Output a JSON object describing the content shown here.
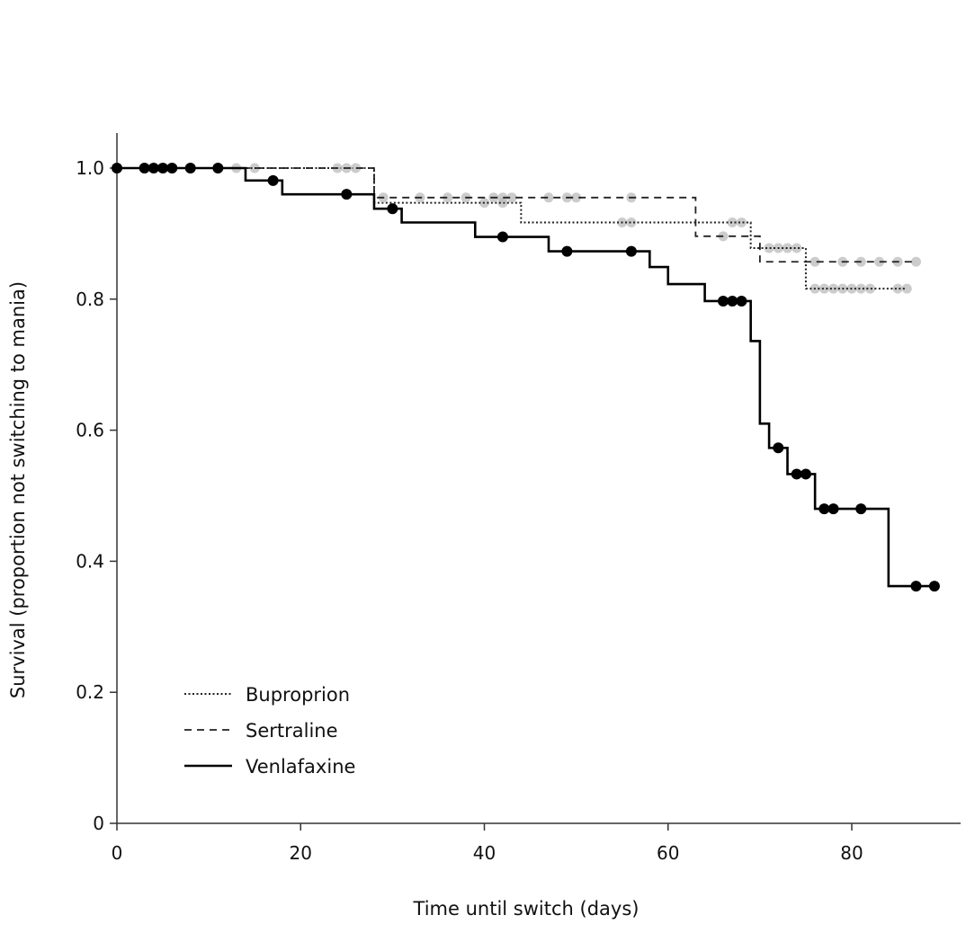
{
  "chart_data": {
    "type": "line",
    "subtype": "kaplan-meier step",
    "title": "",
    "xlabel": "Time until switch (days)",
    "ylabel": "Survival (proportion not switching to mania)",
    "xlim": [
      0,
      92
    ],
    "ylim": [
      0,
      1.05
    ],
    "xticks": [
      0,
      20,
      40,
      60,
      80
    ],
    "xtick_labels": [
      "0",
      "20",
      "40",
      "60",
      "80"
    ],
    "yticks": [
      0,
      0.2,
      0.4,
      0.6,
      0.8,
      1.0
    ],
    "ytick_labels": [
      "0",
      "0.2",
      "0.4",
      "0.6",
      "0.8",
      "1.0"
    ],
    "grid": false,
    "legend_position": "bottom-left",
    "series": [
      {
        "name": "Buproprion",
        "style": "dotted",
        "color": "#222222",
        "censor_color": "#bbbbbb",
        "steps": [
          [
            0,
            1.0
          ],
          [
            28,
            0.947
          ],
          [
            44,
            0.917
          ],
          [
            69,
            0.878
          ],
          [
            75,
            0.816
          ]
        ],
        "end": 86,
        "censored": [
          [
            13,
            1.0
          ],
          [
            15,
            1.0
          ],
          [
            40,
            0.947
          ],
          [
            42,
            0.947
          ],
          [
            55,
            0.917
          ],
          [
            56,
            0.917
          ],
          [
            67,
            0.917
          ],
          [
            68,
            0.917
          ],
          [
            71,
            0.878
          ],
          [
            72,
            0.878
          ],
          [
            73,
            0.878
          ],
          [
            74,
            0.878
          ],
          [
            76,
            0.816
          ],
          [
            77,
            0.816
          ],
          [
            78,
            0.816
          ],
          [
            79,
            0.816
          ],
          [
            80,
            0.816
          ],
          [
            81,
            0.816
          ],
          [
            82,
            0.816
          ],
          [
            85,
            0.816
          ],
          [
            86,
            0.816
          ]
        ]
      },
      {
        "name": "Sertraline",
        "style": "dashed",
        "color": "#222222",
        "censor_color": "#bbbbbb",
        "steps": [
          [
            0,
            1.0
          ],
          [
            28,
            0.955
          ],
          [
            63,
            0.896
          ],
          [
            70,
            0.857
          ]
        ],
        "end": 87,
        "censored": [
          [
            24,
            1.0
          ],
          [
            25,
            1.0
          ],
          [
            26,
            1.0
          ],
          [
            29,
            0.955
          ],
          [
            33,
            0.955
          ],
          [
            36,
            0.955
          ],
          [
            38,
            0.955
          ],
          [
            41,
            0.955
          ],
          [
            42,
            0.955
          ],
          [
            43,
            0.955
          ],
          [
            47,
            0.955
          ],
          [
            49,
            0.955
          ],
          [
            50,
            0.955
          ],
          [
            56,
            0.955
          ],
          [
            66,
            0.896
          ],
          [
            76,
            0.857
          ],
          [
            79,
            0.857
          ],
          [
            81,
            0.857
          ],
          [
            83,
            0.857
          ],
          [
            85,
            0.857
          ],
          [
            87,
            0.857
          ]
        ]
      },
      {
        "name": "Venlafaxine",
        "style": "solid",
        "color": "#000000",
        "censor_color": "#000000",
        "steps": [
          [
            0,
            1.0
          ],
          [
            14,
            0.981
          ],
          [
            18,
            0.96
          ],
          [
            28,
            0.938
          ],
          [
            31,
            0.917
          ],
          [
            39,
            0.895
          ],
          [
            47,
            0.873
          ],
          [
            58,
            0.849
          ],
          [
            60,
            0.823
          ],
          [
            64,
            0.797
          ],
          [
            69,
            0.736
          ],
          [
            70,
            0.61
          ],
          [
            71,
            0.573
          ],
          [
            73,
            0.533
          ],
          [
            76,
            0.48
          ],
          [
            84,
            0.362
          ]
        ],
        "end": 89,
        "censored": [
          [
            0,
            1.0
          ],
          [
            3,
            1.0
          ],
          [
            4,
            1.0
          ],
          [
            5,
            1.0
          ],
          [
            6,
            1.0
          ],
          [
            8,
            1.0
          ],
          [
            11,
            1.0
          ],
          [
            17,
            0.981
          ],
          [
            25,
            0.96
          ],
          [
            30,
            0.938
          ],
          [
            42,
            0.895
          ],
          [
            49,
            0.873
          ],
          [
            56,
            0.873
          ],
          [
            66,
            0.797
          ],
          [
            67,
            0.797
          ],
          [
            68,
            0.797
          ],
          [
            72,
            0.573
          ],
          [
            74,
            0.533
          ],
          [
            75,
            0.533
          ],
          [
            77,
            0.48
          ],
          [
            78,
            0.48
          ],
          [
            81,
            0.48
          ],
          [
            87,
            0.362
          ],
          [
            89,
            0.362
          ]
        ]
      }
    ]
  }
}
